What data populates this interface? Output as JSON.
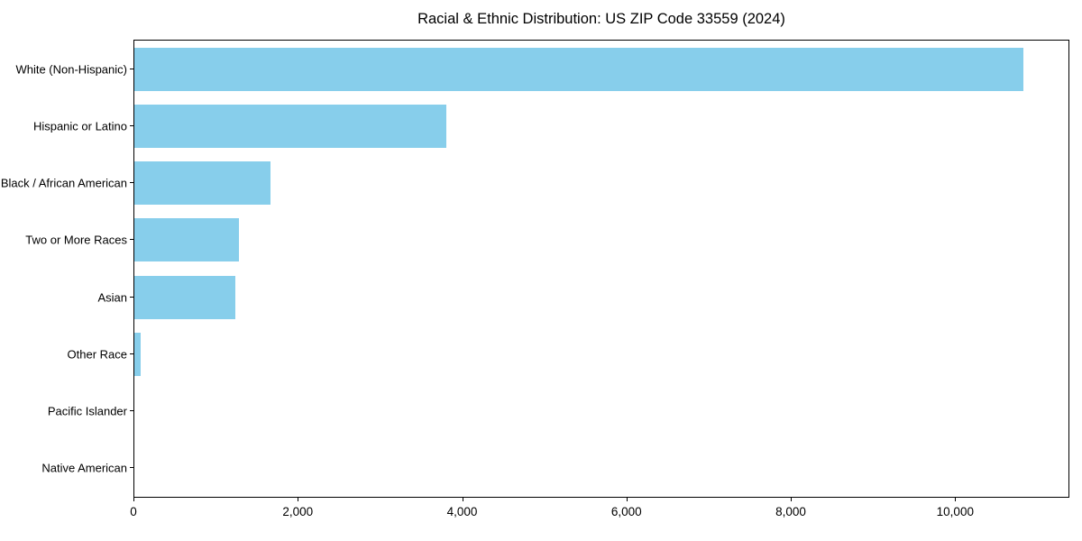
{
  "chart_data": {
    "type": "bar",
    "orientation": "horizontal",
    "title": "Racial & Ethnic Distribution: US ZIP Code 33559 (2024)",
    "categories": [
      "White (Non-Hispanic)",
      "Hispanic or Latino",
      "Black / African American",
      "Two or More Races",
      "Asian",
      "Other Race",
      "Pacific Islander",
      "Native American"
    ],
    "values": [
      10845,
      3800,
      1660,
      1280,
      1230,
      75,
      0,
      0
    ],
    "xlabel": "",
    "ylabel": "",
    "xlim": [
      0,
      11390
    ],
    "x_ticks": {
      "values": [
        0,
        2000,
        4000,
        6000,
        8000,
        10000
      ],
      "labels": [
        "0",
        "2,000",
        "4,000",
        "6,000",
        "8,000",
        "10,000"
      ]
    },
    "grid": false,
    "legend": null,
    "bar_color": "#87CEEB",
    "axis_color": "#000000",
    "text_color": "#000000",
    "background_color": "#ffffff"
  }
}
